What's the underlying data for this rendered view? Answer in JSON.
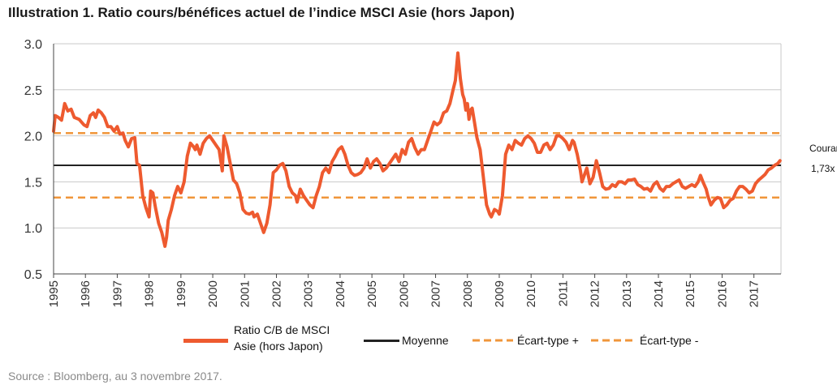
{
  "title": "Illustration 1. Ratio cours/bénéfices actuel de l’indice MSCI Asie (hors Japon)",
  "source": "Source : Bloomberg, au 3 novembre 2017.",
  "legend": {
    "series_label_line1": "Ratio C/B de MSCI",
    "series_label_line2": "Asie (hors Japon)",
    "mean": "Moyenne",
    "sd_plus": "Écart-type +",
    "sd_minus": "Écart-type -"
  },
  "annotation": {
    "line1": "Courant",
    "line2": "1,73x"
  },
  "colors": {
    "series": "#ee5a2f",
    "mean": "#222222",
    "sd": "#f0963a",
    "grid": "#c8c8c8",
    "axis": "#444444"
  },
  "chart_data": {
    "type": "line",
    "ylim": [
      0.5,
      3.0
    ],
    "y_ticks": [
      "0.5",
      "1.0",
      "1.5",
      "2.0",
      "2.5",
      "3.0"
    ],
    "x_ticks": [
      "1995",
      "1996",
      "1997",
      "1998",
      "1999",
      "2000",
      "2001",
      "2002",
      "2003",
      "2004",
      "2005",
      "2006",
      "2007",
      "2008",
      "2009",
      "2010",
      "2011",
      "2012",
      "2013",
      "2014",
      "2015",
      "2016",
      "2017"
    ],
    "xlim": [
      1995.0,
      2017.85
    ],
    "mean": 1.68,
    "sd_plus": 2.03,
    "sd_minus": 1.33,
    "series": [
      {
        "name": "Ratio C/B de MSCI Asie (hors Japon)",
        "points": [
          [
            1995.0,
            2.05
          ],
          [
            1995.05,
            2.22
          ],
          [
            1995.15,
            2.2
          ],
          [
            1995.25,
            2.17
          ],
          [
            1995.35,
            2.35
          ],
          [
            1995.45,
            2.27
          ],
          [
            1995.55,
            2.29
          ],
          [
            1995.65,
            2.2
          ],
          [
            1995.8,
            2.18
          ],
          [
            1995.95,
            2.12
          ],
          [
            1996.05,
            2.1
          ],
          [
            1996.15,
            2.22
          ],
          [
            1996.25,
            2.25
          ],
          [
            1996.32,
            2.2
          ],
          [
            1996.4,
            2.28
          ],
          [
            1996.5,
            2.25
          ],
          [
            1996.6,
            2.2
          ],
          [
            1996.7,
            2.1
          ],
          [
            1996.8,
            2.1
          ],
          [
            1996.9,
            2.05
          ],
          [
            1997.0,
            2.1
          ],
          [
            1997.08,
            2.02
          ],
          [
            1997.18,
            2.03
          ],
          [
            1997.25,
            1.95
          ],
          [
            1997.35,
            1.88
          ],
          [
            1997.45,
            1.97
          ],
          [
            1997.55,
            1.98
          ],
          [
            1997.62,
            1.7
          ],
          [
            1997.7,
            1.68
          ],
          [
            1997.8,
            1.35
          ],
          [
            1997.9,
            1.22
          ],
          [
            1998.0,
            1.12
          ],
          [
            1998.05,
            1.4
          ],
          [
            1998.12,
            1.38
          ],
          [
            1998.2,
            1.22
          ],
          [
            1998.3,
            1.05
          ],
          [
            1998.4,
            0.95
          ],
          [
            1998.5,
            0.8
          ],
          [
            1998.55,
            0.9
          ],
          [
            1998.6,
            1.08
          ],
          [
            1998.7,
            1.2
          ],
          [
            1998.8,
            1.35
          ],
          [
            1998.9,
            1.45
          ],
          [
            1999.0,
            1.38
          ],
          [
            1999.1,
            1.5
          ],
          [
            1999.2,
            1.78
          ],
          [
            1999.3,
            1.92
          ],
          [
            1999.4,
            1.88
          ],
          [
            1999.45,
            1.85
          ],
          [
            1999.5,
            1.9
          ],
          [
            1999.6,
            1.8
          ],
          [
            1999.7,
            1.92
          ],
          [
            1999.8,
            1.97
          ],
          [
            1999.9,
            2.0
          ],
          [
            2000.0,
            1.95
          ],
          [
            2000.1,
            1.9
          ],
          [
            2000.2,
            1.85
          ],
          [
            2000.3,
            1.62
          ],
          [
            2000.35,
            2.0
          ],
          [
            2000.45,
            1.88
          ],
          [
            2000.55,
            1.7
          ],
          [
            2000.65,
            1.52
          ],
          [
            2000.75,
            1.48
          ],
          [
            2000.85,
            1.38
          ],
          [
            2000.95,
            1.2
          ],
          [
            2001.05,
            1.16
          ],
          [
            2001.15,
            1.15
          ],
          [
            2001.25,
            1.17
          ],
          [
            2001.3,
            1.12
          ],
          [
            2001.4,
            1.15
          ],
          [
            2001.5,
            1.05
          ],
          [
            2001.6,
            0.95
          ],
          [
            2001.7,
            1.05
          ],
          [
            2001.8,
            1.25
          ],
          [
            2001.9,
            1.6
          ],
          [
            2002.0,
            1.63
          ],
          [
            2002.1,
            1.68
          ],
          [
            2002.2,
            1.7
          ],
          [
            2002.3,
            1.62
          ],
          [
            2002.4,
            1.45
          ],
          [
            2002.5,
            1.38
          ],
          [
            2002.6,
            1.35
          ],
          [
            2002.65,
            1.28
          ],
          [
            2002.75,
            1.42
          ],
          [
            2002.85,
            1.35
          ],
          [
            2002.95,
            1.3
          ],
          [
            2003.05,
            1.25
          ],
          [
            2003.15,
            1.22
          ],
          [
            2003.25,
            1.35
          ],
          [
            2003.35,
            1.45
          ],
          [
            2003.45,
            1.6
          ],
          [
            2003.55,
            1.65
          ],
          [
            2003.65,
            1.6
          ],
          [
            2003.75,
            1.72
          ],
          [
            2003.85,
            1.78
          ],
          [
            2003.95,
            1.85
          ],
          [
            2004.05,
            1.88
          ],
          [
            2004.15,
            1.8
          ],
          [
            2004.25,
            1.68
          ],
          [
            2004.35,
            1.6
          ],
          [
            2004.45,
            1.57
          ],
          [
            2004.55,
            1.58
          ],
          [
            2004.65,
            1.6
          ],
          [
            2004.75,
            1.65
          ],
          [
            2004.85,
            1.75
          ],
          [
            2004.95,
            1.65
          ],
          [
            2005.05,
            1.72
          ],
          [
            2005.15,
            1.75
          ],
          [
            2005.25,
            1.7
          ],
          [
            2005.35,
            1.62
          ],
          [
            2005.45,
            1.65
          ],
          [
            2005.55,
            1.7
          ],
          [
            2005.65,
            1.75
          ],
          [
            2005.75,
            1.8
          ],
          [
            2005.85,
            1.72
          ],
          [
            2005.95,
            1.85
          ],
          [
            2006.05,
            1.8
          ],
          [
            2006.15,
            1.93
          ],
          [
            2006.25,
            1.97
          ],
          [
            2006.35,
            1.87
          ],
          [
            2006.45,
            1.8
          ],
          [
            2006.55,
            1.85
          ],
          [
            2006.65,
            1.85
          ],
          [
            2006.75,
            1.95
          ],
          [
            2006.85,
            2.05
          ],
          [
            2006.95,
            2.15
          ],
          [
            2007.05,
            2.12
          ],
          [
            2007.15,
            2.15
          ],
          [
            2007.25,
            2.25
          ],
          [
            2007.35,
            2.27
          ],
          [
            2007.45,
            2.35
          ],
          [
            2007.55,
            2.5
          ],
          [
            2007.62,
            2.6
          ],
          [
            2007.7,
            2.9
          ],
          [
            2007.78,
            2.62
          ],
          [
            2007.85,
            2.45
          ],
          [
            2007.9,
            2.4
          ],
          [
            2007.95,
            2.28
          ],
          [
            2008.0,
            2.35
          ],
          [
            2008.05,
            2.18
          ],
          [
            2008.1,
            2.28
          ],
          [
            2008.15,
            2.3
          ],
          [
            2008.22,
            2.15
          ],
          [
            2008.3,
            1.98
          ],
          [
            2008.4,
            1.85
          ],
          [
            2008.5,
            1.55
          ],
          [
            2008.6,
            1.25
          ],
          [
            2008.7,
            1.15
          ],
          [
            2008.75,
            1.12
          ],
          [
            2008.85,
            1.2
          ],
          [
            2008.95,
            1.18
          ],
          [
            2009.0,
            1.15
          ],
          [
            2009.1,
            1.35
          ],
          [
            2009.2,
            1.8
          ],
          [
            2009.3,
            1.9
          ],
          [
            2009.4,
            1.85
          ],
          [
            2009.5,
            1.95
          ],
          [
            2009.6,
            1.92
          ],
          [
            2009.7,
            1.9
          ],
          [
            2009.8,
            1.97
          ],
          [
            2009.9,
            2.0
          ],
          [
            2010.0,
            1.97
          ],
          [
            2010.1,
            1.92
          ],
          [
            2010.2,
            1.82
          ],
          [
            2010.3,
            1.82
          ],
          [
            2010.4,
            1.9
          ],
          [
            2010.5,
            1.92
          ],
          [
            2010.6,
            1.85
          ],
          [
            2010.7,
            1.9
          ],
          [
            2010.8,
            2.0
          ],
          [
            2010.9,
            2.0
          ],
          [
            2011.0,
            1.97
          ],
          [
            2011.1,
            1.93
          ],
          [
            2011.2,
            1.85
          ],
          [
            2011.3,
            1.95
          ],
          [
            2011.35,
            1.93
          ],
          [
            2011.45,
            1.8
          ],
          [
            2011.55,
            1.62
          ],
          [
            2011.6,
            1.5
          ],
          [
            2011.65,
            1.55
          ],
          [
            2011.75,
            1.65
          ],
          [
            2011.85,
            1.48
          ],
          [
            2011.95,
            1.55
          ],
          [
            2012.05,
            1.73
          ],
          [
            2012.15,
            1.6
          ],
          [
            2012.25,
            1.45
          ],
          [
            2012.35,
            1.42
          ],
          [
            2012.45,
            1.43
          ],
          [
            2012.55,
            1.47
          ],
          [
            2012.65,
            1.45
          ],
          [
            2012.75,
            1.5
          ],
          [
            2012.85,
            1.5
          ],
          [
            2012.95,
            1.48
          ],
          [
            2013.05,
            1.52
          ],
          [
            2013.15,
            1.52
          ],
          [
            2013.25,
            1.53
          ],
          [
            2013.35,
            1.47
          ],
          [
            2013.45,
            1.45
          ],
          [
            2013.55,
            1.42
          ],
          [
            2013.65,
            1.43
          ],
          [
            2013.75,
            1.4
          ],
          [
            2013.85,
            1.47
          ],
          [
            2013.95,
            1.5
          ],
          [
            2014.05,
            1.43
          ],
          [
            2014.15,
            1.4
          ],
          [
            2014.25,
            1.45
          ],
          [
            2014.35,
            1.45
          ],
          [
            2014.45,
            1.48
          ],
          [
            2014.55,
            1.5
          ],
          [
            2014.65,
            1.52
          ],
          [
            2014.75,
            1.45
          ],
          [
            2014.85,
            1.43
          ],
          [
            2014.95,
            1.45
          ],
          [
            2015.05,
            1.47
          ],
          [
            2015.15,
            1.45
          ],
          [
            2015.25,
            1.5
          ],
          [
            2015.32,
            1.57
          ],
          [
            2015.4,
            1.5
          ],
          [
            2015.5,
            1.42
          ],
          [
            2015.55,
            1.35
          ],
          [
            2015.65,
            1.25
          ],
          [
            2015.75,
            1.3
          ],
          [
            2015.85,
            1.33
          ],
          [
            2015.95,
            1.32
          ],
          [
            2016.05,
            1.22
          ],
          [
            2016.15,
            1.25
          ],
          [
            2016.25,
            1.3
          ],
          [
            2016.35,
            1.32
          ],
          [
            2016.45,
            1.4
          ],
          [
            2016.55,
            1.45
          ],
          [
            2016.65,
            1.45
          ],
          [
            2016.75,
            1.42
          ],
          [
            2016.85,
            1.38
          ],
          [
            2016.95,
            1.4
          ],
          [
            2017.05,
            1.48
          ],
          [
            2017.15,
            1.52
          ],
          [
            2017.25,
            1.55
          ],
          [
            2017.35,
            1.58
          ],
          [
            2017.45,
            1.63
          ],
          [
            2017.55,
            1.65
          ],
          [
            2017.65,
            1.68
          ],
          [
            2017.75,
            1.7
          ],
          [
            2017.82,
            1.73
          ]
        ]
      }
    ]
  }
}
